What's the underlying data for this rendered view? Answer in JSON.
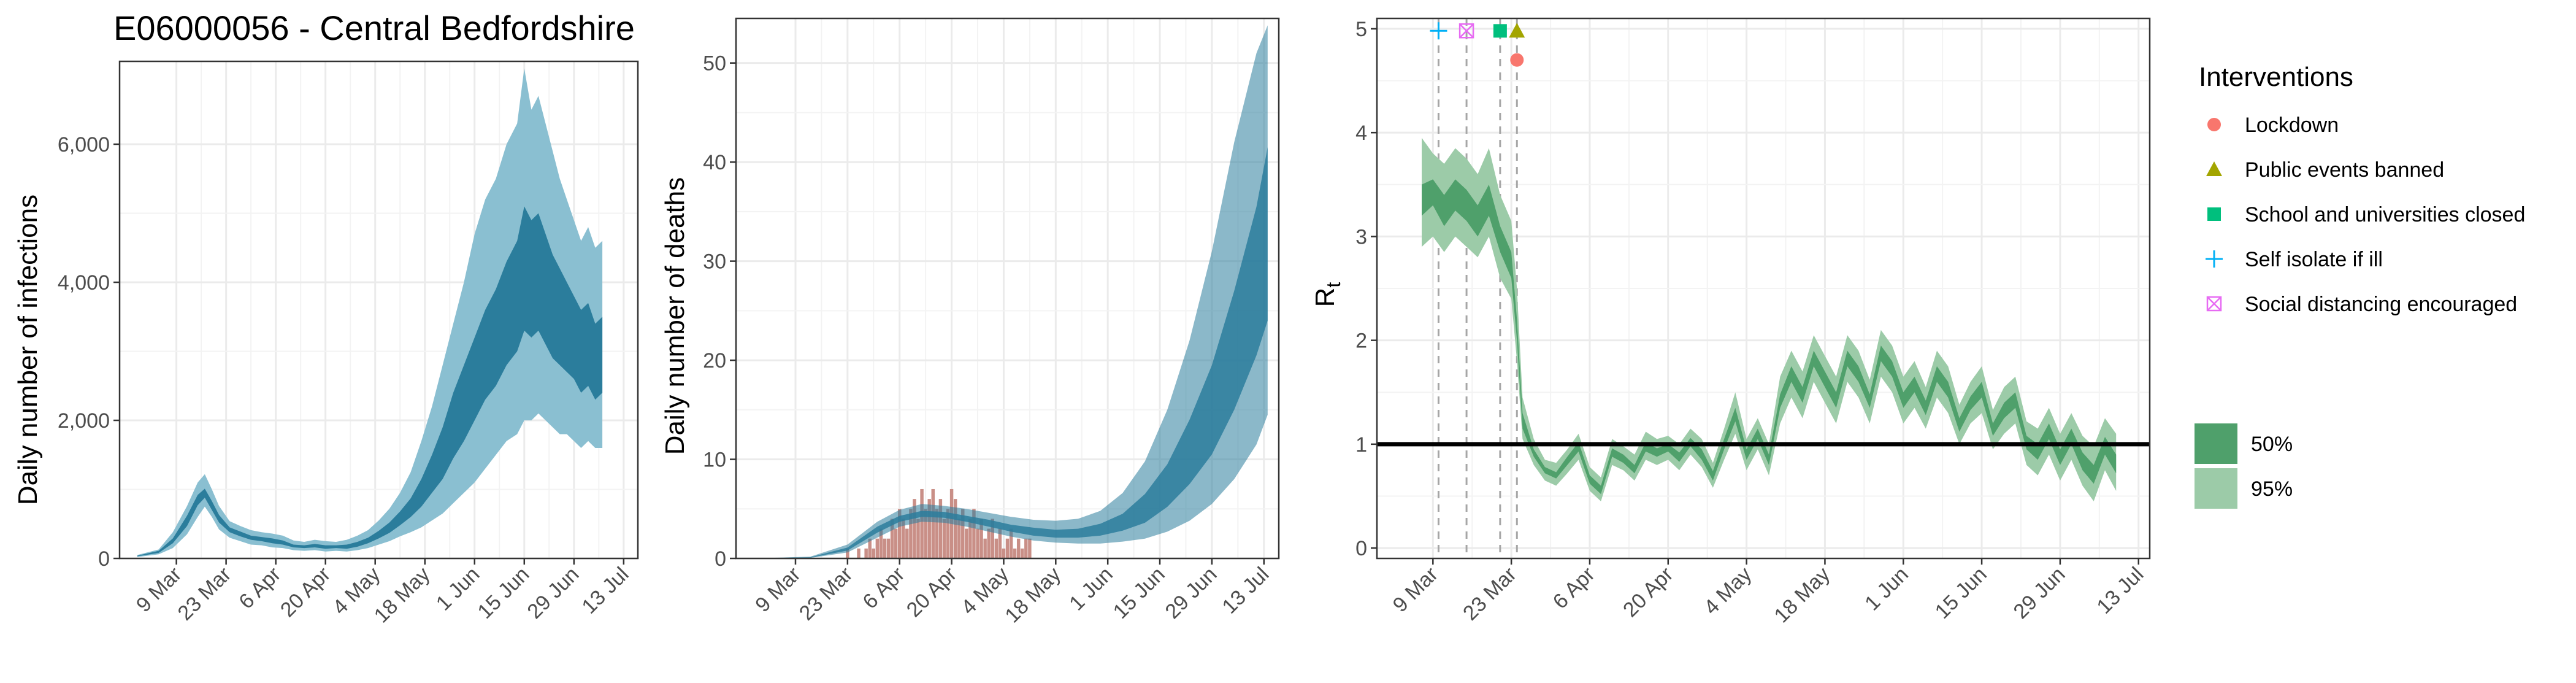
{
  "title": "E06000056 - Central Bedfordshire",
  "colors": {
    "infections_ci50": "#2b7d9c",
    "infections_ci95": "#8abfd1",
    "deaths_bar": "#c98f87",
    "rt_ci50": "#4fa06b",
    "rt_ci95": "#9ccba8",
    "lockdown": "#f8766d",
    "public_events": "#a3a500",
    "schools": "#00bf7d",
    "self_isolate": "#00b0f6",
    "social_distancing": "#e76bf3"
  },
  "chart_data": [
    {
      "type": "area",
      "name": "infections",
      "xlabel": "",
      "ylabel": "Daily number of infections",
      "x_ticks": [
        "9 Mar",
        "23 Mar",
        "6 Apr",
        "20 Apr",
        "4 May",
        "18 May",
        "1 Jun",
        "15 Jun",
        "29 Jun",
        "13 Jul"
      ],
      "x_tick_days": [
        6,
        20,
        34,
        48,
        62,
        76,
        90,
        104,
        118,
        132
      ],
      "xlim": [
        -10,
        136
      ],
      "y_ticks": [
        0,
        2000,
        4000,
        6000
      ],
      "y_tick_labels": [
        "0",
        "2,000",
        "4,000",
        "6,000"
      ],
      "ylim": [
        0,
        7200
      ],
      "series_keys": {
        "day": 0,
        "lo95": 1,
        "lo50": 2,
        "hi50": 3,
        "hi95": 4
      },
      "series": [
        [
          -5,
          20,
          30,
          40,
          50
        ],
        [
          1,
          60,
          80,
          110,
          130
        ],
        [
          5,
          150,
          220,
          290,
          380
        ],
        [
          9,
          350,
          470,
          620,
          760
        ],
        [
          12,
          600,
          770,
          920,
          1100
        ],
        [
          14,
          750,
          880,
          1010,
          1220
        ],
        [
          16,
          600,
          700,
          830,
          1000
        ],
        [
          18,
          420,
          520,
          630,
          760
        ],
        [
          21,
          300,
          380,
          450,
          540
        ],
        [
          24,
          250,
          320,
          390,
          470
        ],
        [
          27,
          200,
          270,
          330,
          410
        ],
        [
          30,
          190,
          250,
          310,
          380
        ],
        [
          33,
          160,
          220,
          290,
          360
        ],
        [
          36,
          150,
          200,
          260,
          330
        ],
        [
          39,
          120,
          160,
          200,
          260
        ],
        [
          42,
          110,
          150,
          190,
          240
        ],
        [
          45,
          120,
          160,
          210,
          270
        ],
        [
          48,
          100,
          140,
          190,
          250
        ],
        [
          51,
          110,
          150,
          190,
          240
        ],
        [
          54,
          100,
          140,
          200,
          270
        ],
        [
          57,
          120,
          170,
          240,
          330
        ],
        [
          60,
          150,
          220,
          300,
          410
        ],
        [
          63,
          200,
          290,
          400,
          550
        ],
        [
          66,
          250,
          370,
          520,
          720
        ],
        [
          69,
          320,
          480,
          680,
          950
        ],
        [
          72,
          380,
          600,
          870,
          1250
        ],
        [
          75,
          450,
          750,
          1150,
          1700
        ],
        [
          78,
          550,
          950,
          1500,
          2200
        ],
        [
          81,
          650,
          1150,
          1900,
          2800
        ],
        [
          84,
          800,
          1450,
          2400,
          3400
        ],
        [
          87,
          950,
          1700,
          2800,
          4000
        ],
        [
          90,
          1100,
          2000,
          3200,
          4700
        ],
        [
          93,
          1300,
          2300,
          3600,
          5200
        ],
        [
          96,
          1500,
          2500,
          3900,
          5500
        ],
        [
          99,
          1700,
          2800,
          4300,
          6000
        ],
        [
          102,
          1800,
          3000,
          4600,
          6300
        ],
        [
          104,
          2000,
          3300,
          5100,
          7100
        ],
        [
          106,
          2000,
          3200,
          4900,
          6500
        ],
        [
          108,
          2100,
          3300,
          5000,
          6700
        ],
        [
          110,
          2000,
          3100,
          4700,
          6300
        ],
        [
          112,
          1900,
          2900,
          4400,
          5900
        ],
        [
          114,
          1800,
          2800,
          4200,
          5500
        ],
        [
          116,
          1800,
          2700,
          4000,
          5200
        ],
        [
          118,
          1700,
          2600,
          3800,
          4900
        ],
        [
          120,
          1600,
          2400,
          3600,
          4600
        ],
        [
          122,
          1700,
          2500,
          3700,
          4800
        ],
        [
          124,
          1600,
          2300,
          3400,
          4500
        ],
        [
          126,
          1600,
          2400,
          3500,
          4600
        ]
      ]
    },
    {
      "type": "bar+area",
      "name": "deaths",
      "xlabel": "",
      "ylabel": "Daily number of deaths",
      "x_ticks": [
        "9 Mar",
        "23 Mar",
        "6 Apr",
        "20 Apr",
        "4 May",
        "18 May",
        "1 Jun",
        "15 Jun",
        "29 Jun",
        "13 Jul"
      ],
      "x_tick_days": [
        6,
        20,
        34,
        48,
        62,
        76,
        90,
        104,
        118,
        132
      ],
      "xlim": [
        -10,
        136
      ],
      "y_ticks": [
        0,
        10,
        20,
        30,
        40,
        50
      ],
      "y_tick_labels": [
        "0",
        "10",
        "20",
        "30",
        "40",
        "50"
      ],
      "ylim": [
        0,
        54.5
      ],
      "series_keys": {
        "day": 0,
        "lo95": 1,
        "lo50": 2,
        "hi50": 3,
        "hi95": 4
      },
      "series": [
        [
          -5,
          0,
          0,
          0,
          0
        ],
        [
          10,
          0.05,
          0.08,
          0.12,
          0.18
        ],
        [
          20,
          0.6,
          0.8,
          1.1,
          1.4
        ],
        [
          28,
          2.1,
          2.6,
          3.2,
          3.7
        ],
        [
          34,
          3.2,
          3.7,
          4.3,
          4.9
        ],
        [
          40,
          3.7,
          4.2,
          4.8,
          5.5
        ],
        [
          46,
          3.6,
          4.1,
          4.7,
          5.3
        ],
        [
          52,
          3.2,
          3.7,
          4.3,
          5.0
        ],
        [
          58,
          2.7,
          3.2,
          3.9,
          4.6
        ],
        [
          64,
          2.2,
          2.7,
          3.4,
          4.2
        ],
        [
          70,
          1.8,
          2.3,
          3.1,
          3.9
        ],
        [
          76,
          1.6,
          2.1,
          2.9,
          3.8
        ],
        [
          82,
          1.5,
          2.1,
          3.0,
          4.0
        ],
        [
          88,
          1.5,
          2.3,
          3.5,
          4.8
        ],
        [
          94,
          1.7,
          2.8,
          4.5,
          6.6
        ],
        [
          100,
          2.0,
          3.6,
          6.5,
          9.8
        ],
        [
          106,
          2.7,
          5.2,
          9.5,
          15.0
        ],
        [
          112,
          3.8,
          7.5,
          14.0,
          22.0
        ],
        [
          118,
          5.5,
          10.5,
          19.5,
          31.0
        ],
        [
          124,
          8.0,
          15.0,
          27.0,
          42.0
        ],
        [
          130,
          11.5,
          20.5,
          35.5,
          51.0
        ],
        [
          133,
          14.5,
          24.0,
          41.5,
          53.8
        ]
      ],
      "bars_start_day": 20,
      "bars": [
        1,
        0,
        0,
        1,
        0,
        1,
        2,
        1,
        2,
        3,
        2,
        2,
        4,
        3,
        5,
        4,
        3,
        5,
        6,
        4,
        7,
        5,
        6,
        7,
        5,
        6,
        4,
        5,
        7,
        6,
        4,
        5,
        3,
        4,
        5,
        3,
        4,
        2,
        3,
        4,
        2,
        3,
        1,
        2,
        3,
        1,
        2,
        1,
        2,
        2
      ]
    },
    {
      "type": "area",
      "name": "rt",
      "xlabel": "",
      "ylabel": "R",
      "ylabel_subscript": "t",
      "x_ticks": [
        "9 Mar",
        "23 Mar",
        "6 Apr",
        "20 Apr",
        "4 May",
        "18 May",
        "1 Jun",
        "15 Jun",
        "29 Jun",
        "13 Jul"
      ],
      "x_tick_days": [
        6,
        20,
        34,
        48,
        62,
        76,
        90,
        104,
        118,
        132
      ],
      "xlim": [
        -4,
        134
      ],
      "y_ticks": [
        0,
        1,
        2,
        3,
        4,
        5
      ],
      "y_tick_labels": [
        "0",
        "1",
        "2",
        "3",
        "4",
        "5"
      ],
      "ylim": [
        -0.1,
        5.1
      ],
      "reference_line": 1,
      "series_keys": {
        "day": 0,
        "lo95": 1,
        "lo50": 2,
        "hi50": 3,
        "hi95": 4
      },
      "series": [
        [
          4,
          2.9,
          3.2,
          3.5,
          3.95
        ],
        [
          6,
          3.0,
          3.3,
          3.55,
          3.8
        ],
        [
          8,
          2.85,
          3.1,
          3.4,
          3.7
        ],
        [
          10,
          3.0,
          3.25,
          3.55,
          3.85
        ],
        [
          12,
          2.9,
          3.15,
          3.45,
          3.75
        ],
        [
          14,
          2.8,
          3.0,
          3.3,
          3.6
        ],
        [
          16,
          3.0,
          3.2,
          3.5,
          3.85
        ],
        [
          18,
          2.6,
          2.85,
          3.1,
          3.4
        ],
        [
          20,
          2.4,
          2.6,
          2.85,
          3.15
        ],
        [
          21,
          1.8,
          2.0,
          2.2,
          2.5
        ],
        [
          22,
          1.05,
          1.15,
          1.3,
          1.45
        ],
        [
          24,
          0.8,
          0.88,
          0.95,
          1.05
        ],
        [
          26,
          0.65,
          0.72,
          0.78,
          0.85
        ],
        [
          28,
          0.6,
          0.67,
          0.73,
          0.82
        ],
        [
          30,
          0.72,
          0.8,
          0.88,
          0.95
        ],
        [
          32,
          0.85,
          0.93,
          1.02,
          1.1
        ],
        [
          34,
          0.55,
          0.62,
          0.7,
          0.78
        ],
        [
          36,
          0.45,
          0.52,
          0.6,
          0.68
        ],
        [
          38,
          0.8,
          0.88,
          0.96,
          1.05
        ],
        [
          40,
          0.75,
          0.82,
          0.9,
          0.98
        ],
        [
          42,
          0.65,
          0.72,
          0.8,
          0.9
        ],
        [
          44,
          0.85,
          0.93,
          1.02,
          1.12
        ],
        [
          46,
          0.8,
          0.88,
          0.96,
          1.05
        ],
        [
          48,
          0.85,
          0.93,
          1.0,
          1.08
        ],
        [
          50,
          0.75,
          0.83,
          0.92,
          1.0
        ],
        [
          52,
          0.9,
          0.98,
          1.06,
          1.15
        ],
        [
          54,
          0.78,
          0.85,
          0.95,
          1.05
        ],
        [
          56,
          0.58,
          0.65,
          0.74,
          0.82
        ],
        [
          58,
          0.85,
          0.95,
          1.05,
          1.15
        ],
        [
          60,
          1.1,
          1.22,
          1.35,
          1.5
        ],
        [
          62,
          0.75,
          0.85,
          0.95,
          1.05
        ],
        [
          64,
          0.95,
          1.05,
          1.15,
          1.25
        ],
        [
          66,
          0.7,
          0.8,
          0.9,
          1.0
        ],
        [
          68,
          1.2,
          1.35,
          1.48,
          1.65
        ],
        [
          70,
          1.45,
          1.6,
          1.75,
          1.9
        ],
        [
          72,
          1.25,
          1.4,
          1.55,
          1.7
        ],
        [
          74,
          1.6,
          1.75,
          1.9,
          2.05
        ],
        [
          76,
          1.4,
          1.55,
          1.7,
          1.85
        ],
        [
          78,
          1.2,
          1.35,
          1.5,
          1.65
        ],
        [
          80,
          1.6,
          1.75,
          1.9,
          2.05
        ],
        [
          82,
          1.45,
          1.6,
          1.75,
          1.9
        ],
        [
          84,
          1.2,
          1.35,
          1.48,
          1.62
        ],
        [
          86,
          1.65,
          1.8,
          1.95,
          2.1
        ],
        [
          88,
          1.5,
          1.65,
          1.8,
          1.95
        ],
        [
          90,
          1.2,
          1.35,
          1.5,
          1.65
        ],
        [
          92,
          1.35,
          1.5,
          1.65,
          1.8
        ],
        [
          94,
          1.15,
          1.28,
          1.42,
          1.55
        ],
        [
          96,
          1.45,
          1.6,
          1.75,
          1.9
        ],
        [
          98,
          1.3,
          1.45,
          1.6,
          1.75
        ],
        [
          100,
          1.0,
          1.12,
          1.25,
          1.38
        ],
        [
          102,
          1.2,
          1.33,
          1.46,
          1.6
        ],
        [
          104,
          1.3,
          1.45,
          1.6,
          1.75
        ],
        [
          106,
          0.95,
          1.08,
          1.2,
          1.33
        ],
        [
          108,
          1.1,
          1.25,
          1.4,
          1.55
        ],
        [
          110,
          1.2,
          1.35,
          1.5,
          1.65
        ],
        [
          112,
          0.8,
          0.95,
          1.08,
          1.22
        ],
        [
          114,
          0.7,
          0.85,
          1.0,
          1.15
        ],
        [
          116,
          0.9,
          1.05,
          1.2,
          1.35
        ],
        [
          118,
          0.65,
          0.8,
          0.95,
          1.1
        ],
        [
          120,
          0.85,
          1.0,
          1.15,
          1.3
        ],
        [
          122,
          0.6,
          0.75,
          0.92,
          1.08
        ],
        [
          124,
          0.45,
          0.62,
          0.8,
          0.98
        ],
        [
          126,
          0.75,
          0.9,
          1.07,
          1.25
        ],
        [
          128,
          0.55,
          0.72,
          0.9,
          1.1
        ]
      ],
      "interventions": [
        {
          "label": "Self isolate if ill",
          "day": 7,
          "y": 4.98,
          "marker": "plus",
          "color_key": "self_isolate"
        },
        {
          "label": "Social distancing encouraged",
          "day": 12,
          "y": 4.98,
          "marker": "boxx",
          "color_key": "social_distancing"
        },
        {
          "label": "School and universities closed",
          "day": 18,
          "y": 4.98,
          "marker": "square",
          "color_key": "schools"
        },
        {
          "label": "Public events banned",
          "day": 21,
          "y": 4.98,
          "marker": "triangle",
          "color_key": "public_events"
        },
        {
          "label": "Lockdown",
          "day": 21,
          "y": 4.7,
          "marker": "circle",
          "color_key": "lockdown"
        }
      ]
    }
  ],
  "legend": {
    "title": "Interventions",
    "items": [
      {
        "label": "Lockdown",
        "marker": "circle",
        "color_key": "lockdown"
      },
      {
        "label": "Public events banned",
        "marker": "triangle",
        "color_key": "public_events"
      },
      {
        "label": "School and universities closed",
        "marker": "square",
        "color_key": "schools"
      },
      {
        "label": "Self isolate if ill",
        "marker": "plus",
        "color_key": "self_isolate"
      },
      {
        "label": "Social distancing encouraged",
        "marker": "boxx",
        "color_key": "social_distancing"
      }
    ],
    "ci_items": [
      {
        "label": "50%",
        "color_key": "rt_ci50"
      },
      {
        "label": "95%",
        "color_key": "rt_ci95"
      }
    ]
  }
}
